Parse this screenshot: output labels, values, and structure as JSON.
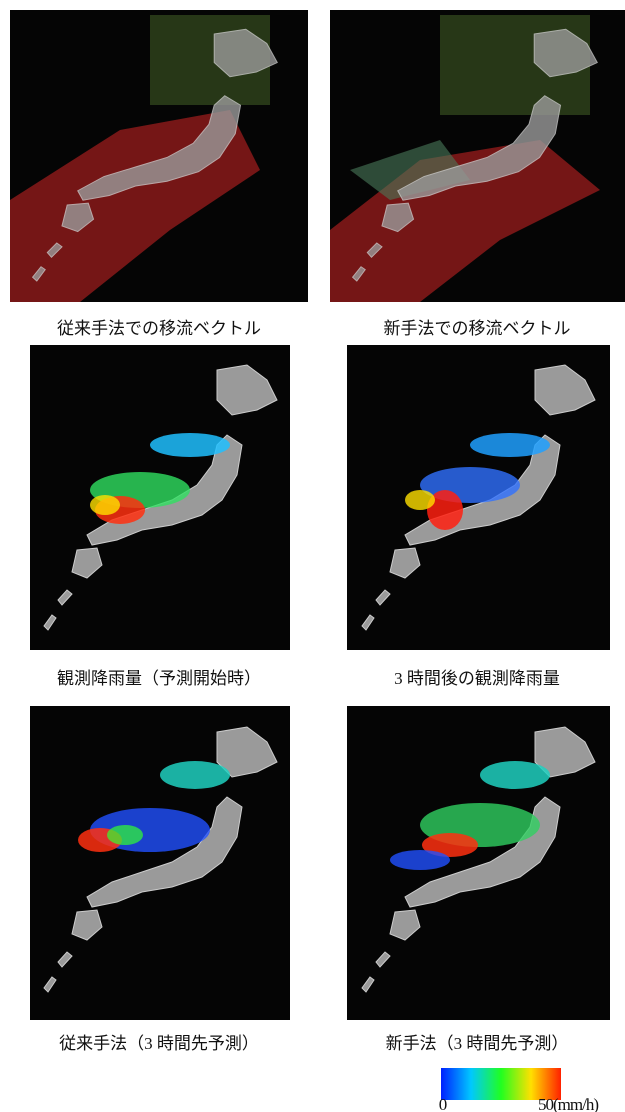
{
  "panels": [
    {
      "caption": "従来手法での移流ベクトル"
    },
    {
      "caption": "新手法での移流ベクトル"
    },
    {
      "caption": "観測降雨量（予測開始時）"
    },
    {
      "caption": "3 時間後の観測降雨量"
    },
    {
      "caption": "従来手法（3 時間先予測）"
    },
    {
      "caption": "新手法（3 時間先予測）"
    }
  ],
  "colorbar": {
    "min_label": "0",
    "max_label": "50(mm/h)"
  }
}
